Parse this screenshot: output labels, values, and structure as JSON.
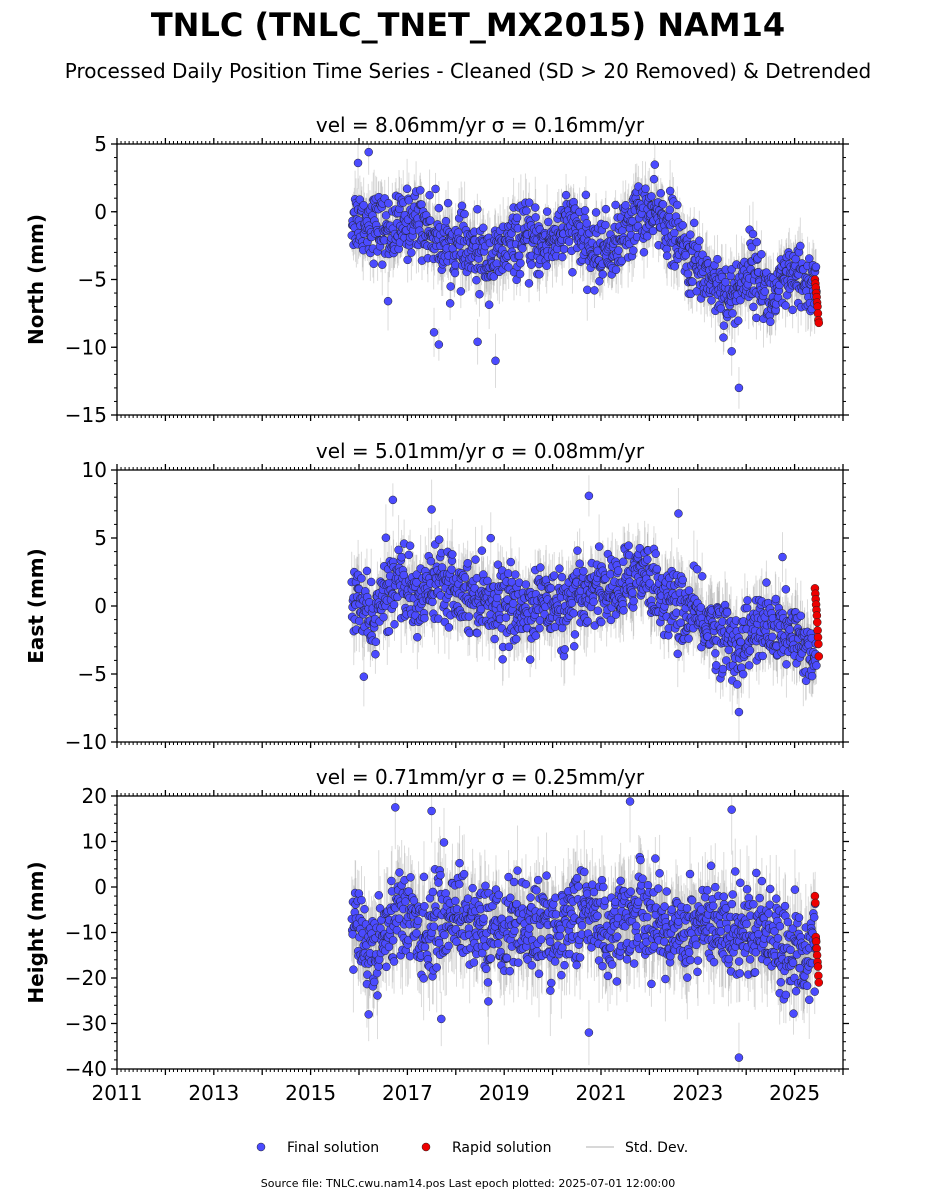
{
  "figure": {
    "title": "TNLC (TNLC_TNET_MX2015) NAM14",
    "subtitle": "Processed Daily Position Time Series - Cleaned (SD > 20 Removed) & Detrended",
    "footer": "Source file: TNLC.cwu.nam14.pos  Last epoch plotted: 2025-07-01 12:00:00",
    "colors": {
      "final": "#4b4bff",
      "rapid": "#ee0000",
      "stddev": "#999999",
      "edge": "#222222"
    },
    "legend": {
      "placement": "bottom-center",
      "entries": [
        "Final solution",
        "Rapid solution",
        "Std. Dev."
      ]
    }
  },
  "chart_data": [
    {
      "type": "scatter",
      "panel_title": "vel = 8.06mm/yr   σ = 0.16mm/yr",
      "ylabel": "North (mm)",
      "xlim": [
        2011,
        2026
      ],
      "ylim": [
        -15,
        5
      ],
      "yticks": [
        -15,
        -10,
        -5,
        0,
        5
      ],
      "ytick_labels": [
        "−15",
        "−10",
        "−5",
        "0",
        "5"
      ],
      "xticks": [
        2011,
        2013,
        2015,
        2017,
        2019,
        2021,
        2023,
        2025
      ],
      "x_start": 2015.85,
      "x_end": 2025.45,
      "rapid_x_range": [
        2025.42,
        2025.5
      ],
      "trend_knots": [
        [
          2015.85,
          -0.5
        ],
        [
          2016.2,
          -0.8
        ],
        [
          2016.7,
          -1.5
        ],
        [
          2017.2,
          -0.5
        ],
        [
          2017.8,
          -2.5
        ],
        [
          2018.3,
          -3.0
        ],
        [
          2018.8,
          -3.5
        ],
        [
          2019.3,
          -2.0
        ],
        [
          2019.8,
          -2.5
        ],
        [
          2020.4,
          -1.0
        ],
        [
          2020.8,
          -3.0
        ],
        [
          2021.3,
          -2.5
        ],
        [
          2021.8,
          0.0
        ],
        [
          2022.3,
          -0.5
        ],
        [
          2022.8,
          -3.5
        ],
        [
          2023.3,
          -5.0
        ],
        [
          2023.7,
          -6.5
        ],
        [
          2024.1,
          -4.0
        ],
        [
          2024.5,
          -6.5
        ],
        [
          2024.9,
          -5.0
        ],
        [
          2025.45,
          -5.5
        ]
      ],
      "scatter_sd": 1.2,
      "final_outliers": [
        [
          2015.98,
          3.6
        ],
        [
          2016.2,
          4.4
        ],
        [
          2017.65,
          -9.8
        ],
        [
          2018.45,
          -9.6
        ],
        [
          2018.82,
          -11.0
        ],
        [
          2023.85,
          -13.0
        ],
        [
          2023.7,
          -10.3
        ],
        [
          2016.6,
          -6.6
        ],
        [
          2017.55,
          -8.9
        ]
      ],
      "rapid_values": [
        -5.0,
        -5.3,
        -5.6,
        -6.0,
        -6.3,
        -6.7,
        -7.0,
        -7.5,
        -8.0,
        -8.2
      ]
    },
    {
      "type": "scatter",
      "panel_title": "vel = 5.01mm/yr   σ = 0.08mm/yr",
      "ylabel": "East (mm)",
      "xlim": [
        2011,
        2026
      ],
      "ylim": [
        -10,
        10
      ],
      "yticks": [
        -10,
        -5,
        0,
        5,
        10
      ],
      "ytick_labels": [
        "−10",
        "−5",
        "0",
        "5",
        "10"
      ],
      "xticks": [
        2011,
        2013,
        2015,
        2017,
        2019,
        2021,
        2023,
        2025
      ],
      "x_start": 2015.85,
      "x_end": 2025.45,
      "rapid_x_range": [
        2025.42,
        2025.5
      ],
      "trend_knots": [
        [
          2015.85,
          0.5
        ],
        [
          2016.3,
          -1.0
        ],
        [
          2016.8,
          2.5
        ],
        [
          2017.2,
          0.0
        ],
        [
          2017.6,
          2.5
        ],
        [
          2018.2,
          1.0
        ],
        [
          2018.8,
          0.5
        ],
        [
          2019.3,
          -0.5
        ],
        [
          2019.8,
          0.5
        ],
        [
          2020.3,
          -0.5
        ],
        [
          2020.8,
          1.5
        ],
        [
          2021.4,
          1.0
        ],
        [
          2021.8,
          3.0
        ],
        [
          2022.3,
          0.5
        ],
        [
          2022.8,
          -0.5
        ],
        [
          2023.3,
          -1.5
        ],
        [
          2023.8,
          -3.0
        ],
        [
          2024.3,
          -1.5
        ],
        [
          2024.8,
          -2.0
        ],
        [
          2025.45,
          -3.5
        ]
      ],
      "scatter_sd": 1.3,
      "final_outliers": [
        [
          2016.7,
          7.8
        ],
        [
          2020.75,
          8.1
        ],
        [
          2017.5,
          7.1
        ],
        [
          2022.6,
          6.8
        ],
        [
          2016.1,
          -5.2
        ],
        [
          2023.85,
          -7.8
        ],
        [
          2024.75,
          3.6
        ]
      ],
      "rapid_values": [
        1.3,
        0.9,
        0.5,
        0.1,
        -0.3,
        -0.7,
        -1.2,
        -1.8,
        -2.3,
        -2.8,
        -3.7
      ]
    },
    {
      "type": "scatter",
      "panel_title": "vel = 0.71mm/yr   σ = 0.25mm/yr",
      "ylabel": "Height (mm)",
      "xlim": [
        2011,
        2026
      ],
      "ylim": [
        -40,
        20
      ],
      "yticks": [
        -40,
        -30,
        -20,
        -10,
        0,
        10,
        20
      ],
      "ytick_labels": [
        "−40",
        "−30",
        "−20",
        "−10",
        "0",
        "10",
        "20"
      ],
      "xticks": [
        2011,
        2013,
        2015,
        2017,
        2019,
        2021,
        2023,
        2025
      ],
      "x_start": 2015.85,
      "x_end": 2025.45,
      "rapid_x_range": [
        2025.42,
        2025.5
      ],
      "trend_knots": [
        [
          2015.85,
          -8.0
        ],
        [
          2016.3,
          -14.0
        ],
        [
          2016.8,
          -5.0
        ],
        [
          2017.3,
          -10.0
        ],
        [
          2018.0,
          -5.0
        ],
        [
          2018.6,
          -10.0
        ],
        [
          2019.3,
          -8.0
        ],
        [
          2020.0,
          -10.0
        ],
        [
          2020.6,
          -5.0
        ],
        [
          2021.2,
          -10.0
        ],
        [
          2021.8,
          -5.0
        ],
        [
          2022.4,
          -10.0
        ],
        [
          2023.0,
          -8.0
        ],
        [
          2023.6,
          -10.0
        ],
        [
          2024.3,
          -8.0
        ],
        [
          2024.9,
          -14.0
        ],
        [
          2025.45,
          -15.0
        ]
      ],
      "scatter_sd": 5.0,
      "final_outliers": [
        [
          2016.75,
          17.5
        ],
        [
          2021.6,
          18.8
        ],
        [
          2023.7,
          17.0
        ],
        [
          2017.5,
          16.7
        ],
        [
          2023.85,
          -37.5
        ],
        [
          2020.75,
          -32.0
        ],
        [
          2016.2,
          -28.0
        ],
        [
          2017.7,
          -29.0
        ]
      ],
      "rapid_values": [
        -2.0,
        -3.5,
        -11.0,
        -12.0,
        -13.5,
        -15.0,
        -16.5,
        -17.5,
        -19.5,
        -21.0
      ]
    }
  ],
  "xtick_labels": [
    "2011",
    "2013",
    "2015",
    "2017",
    "2019",
    "2021",
    "2023",
    "2025"
  ]
}
